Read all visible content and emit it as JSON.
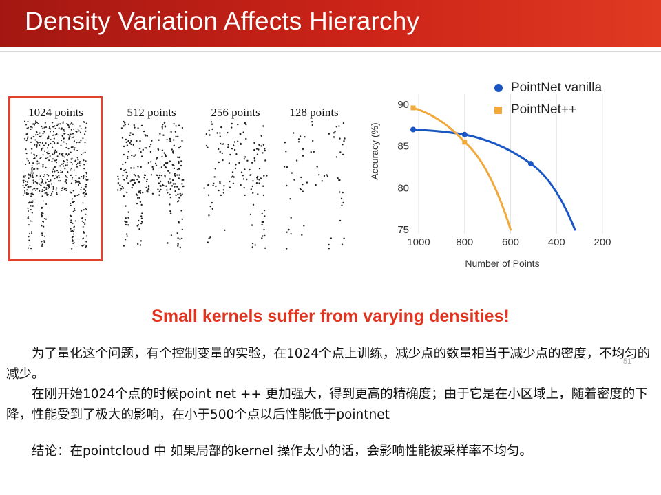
{
  "slide": {
    "title": "Density Variation Affects Hierarchy",
    "subheading": "Small kernels suffer from varying densities!",
    "page_number": "51"
  },
  "chairs": [
    {
      "label": "1024 points",
      "points": 1024,
      "highlighted": true
    },
    {
      "label": "512 points",
      "points": 512,
      "highlighted": false
    },
    {
      "label": "256 points",
      "points": 256,
      "highlighted": false
    },
    {
      "label": "128 points",
      "points": 128,
      "highlighted": false
    }
  ],
  "chart_data": {
    "type": "line",
    "xlabel": "Number of Points",
    "ylabel": "Accuracy (%)",
    "x_ticks": [
      1000,
      800,
      600,
      400,
      200
    ],
    "y_ticks": [
      75,
      80,
      85,
      90
    ],
    "xlim": [
      1024,
      200
    ],
    "ylim": [
      74.5,
      91
    ],
    "legend_position": "top-right",
    "series": [
      {
        "name": "PointNet vanilla",
        "color": "#1a56c4",
        "marker": "circle",
        "points": [
          [
            1024,
            87.0
          ],
          [
            800,
            86.4
          ],
          [
            512,
            82.9
          ],
          [
            320,
            75.0
          ]
        ]
      },
      {
        "name": "PointNet++",
        "color": "#f2a93b",
        "marker": "square",
        "points": [
          [
            1024,
            89.6
          ],
          [
            800,
            85.5
          ],
          [
            600,
            75.0
          ]
        ]
      }
    ]
  },
  "notes": {
    "line1": "为了量化这个问题，有个控制变量的实验，在1024个点上训练，减少点的数量相当于减少点的密度，不均匀的减少。",
    "line2": "在刚开始1024个点的时候point net ++ 更加强大，得到更高的精确度；由于它是在小区域上，随着密度的下降，性能受到了极大的影响，在小于500个点以后性能低于pointnet",
    "line3": "结论：在pointcloud 中 如果局部的kernel 操作太小的话，会影响性能被采样率不均匀。"
  }
}
